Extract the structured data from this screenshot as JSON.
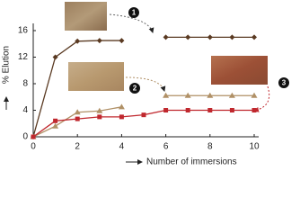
{
  "chart_data": {
    "type": "line",
    "x_label": "Number of immersions",
    "y_label": "% Elution",
    "x": [
      0,
      1,
      2,
      3,
      4,
      5,
      6,
      7,
      8,
      9,
      10
    ],
    "series": [
      {
        "color": "#5a3a22",
        "marker": "diamond",
        "values": [
          0,
          12.0,
          14.4,
          14.5,
          14.5,
          null,
          15.0,
          15.0,
          15.0,
          15.0,
          15.0
        ]
      },
      {
        "color": "#b09066",
        "marker": "triangle",
        "values": [
          0,
          1.6,
          3.7,
          3.9,
          4.5,
          null,
          6.2,
          6.2,
          6.2,
          6.2,
          6.2
        ]
      },
      {
        "color": "#c0282e",
        "marker": "square",
        "values": [
          0,
          2.4,
          2.7,
          3.0,
          3.0,
          3.3,
          4.0,
          4.0,
          4.0,
          4.0,
          4.0
        ]
      }
    ],
    "annotations": [
      "1",
      "2",
      "3"
    ],
    "xlim": [
      0,
      10
    ],
    "ylim": [
      0,
      16
    ],
    "xticks": [
      0,
      2,
      4,
      6,
      8,
      10
    ],
    "yticks": [
      0,
      4,
      8,
      12,
      16
    ]
  }
}
